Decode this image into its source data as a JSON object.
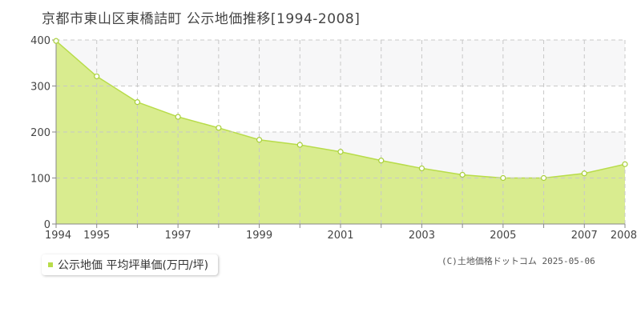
{
  "title": "京都市東山区東橋詰町 公示地価推移[1994-2008]",
  "legend_label": "公示地価 平均坪単価(万円/坪)",
  "copyright": "(C)土地価格ドットコム 2025-05-06",
  "colors": {
    "area_fill": "#d9ec8f",
    "line": "#b8dc4a",
    "marker_stroke": "#a8cf3a",
    "band": "#f7f7f8",
    "grid": "#c8c8c8",
    "axis": "#888888"
  },
  "chart_data": {
    "type": "area",
    "x": [
      1994,
      1995,
      1996,
      1997,
      1998,
      1999,
      2000,
      2001,
      2002,
      2003,
      2004,
      2005,
      2006,
      2007,
      2008
    ],
    "series": [
      {
        "values": [
          398,
          321,
          265,
          233,
          209,
          183,
          172,
          157,
          138,
          121,
          107,
          100,
          100,
          110,
          130
        ]
      }
    ],
    "ylim": [
      0,
      400
    ],
    "yticks": [
      0,
      100,
      200,
      300,
      400
    ],
    "xtick_labels": [
      "1994",
      "1995",
      "1997",
      "1999",
      "2001",
      "2003",
      "2005",
      "2007",
      "2008"
    ],
    "grid": true,
    "legend_position": "bottom-left"
  }
}
